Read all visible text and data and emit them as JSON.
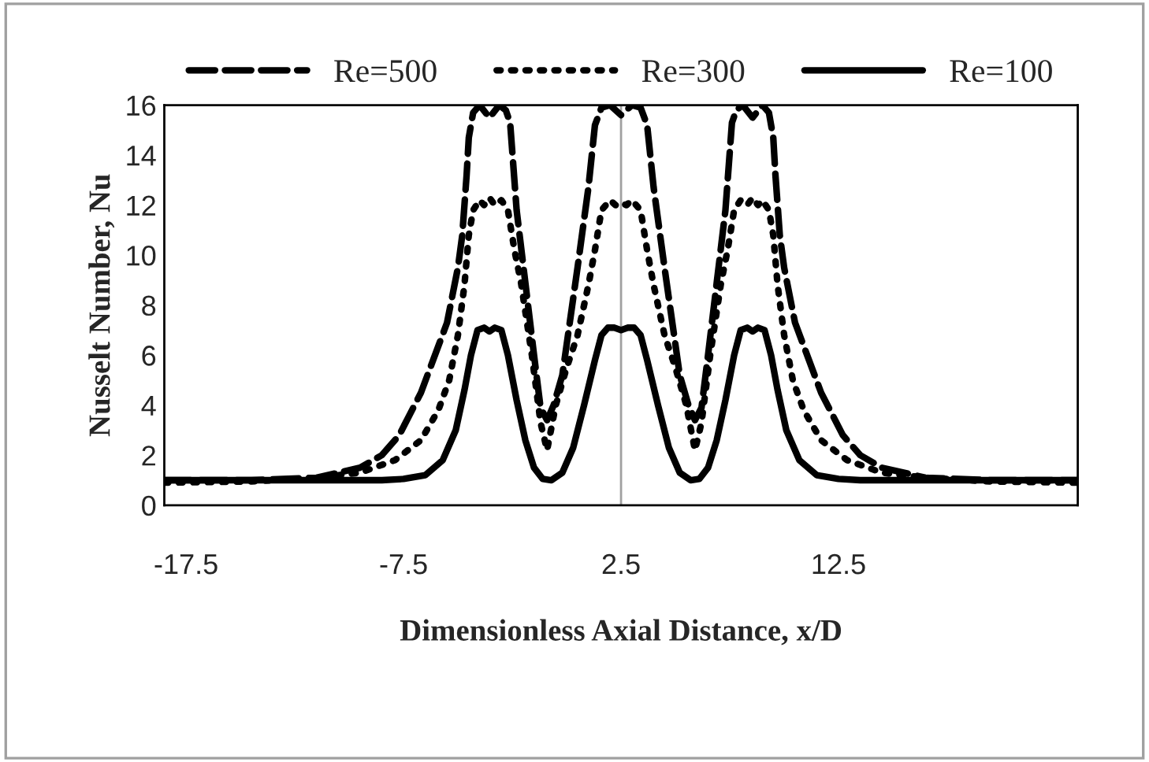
{
  "chart_data": {
    "type": "line",
    "xlabel": "Dimensionless Axial Distance, x/D",
    "ylabel": "Nusselt Number, Nu",
    "xlim": [
      -18.5,
      23.5
    ],
    "xticks": [
      -17.5,
      -7.5,
      2.5,
      12.5
    ],
    "ylim": [
      0,
      16
    ],
    "yticks": [
      0,
      2,
      4,
      6,
      8,
      10,
      12,
      14,
      16
    ],
    "grid": false,
    "legend": "top",
    "marker": "none",
    "ref_lines": [
      {
        "axis": "x",
        "value": 2.5,
        "color": "#a0a0a0"
      }
    ],
    "series": [
      {
        "name": "Re=500",
        "color": "#000000",
        "line_style": "dashed",
        "x": [
          -18.5,
          -14.5,
          -11.5,
          -9.5,
          -8.5,
          -7.7,
          -6.7,
          -5.5,
          -5.0,
          -4.8,
          -4.6,
          -4.5,
          -4.3,
          -4.0,
          -3.55,
          -3.1,
          -2.8,
          -2.6,
          -2.3,
          -1.9,
          -1.5,
          -1.2,
          -0.9,
          -0.6,
          -0.2,
          0.5,
          1.0,
          1.3,
          1.6,
          2.0,
          2.5,
          3.0,
          3.4,
          3.7,
          4.0,
          4.5,
          5.2,
          5.6,
          5.9,
          6.2,
          6.5,
          6.9,
          7.3,
          7.6,
          7.8,
          8.1,
          8.55,
          9.0,
          9.3,
          9.5,
          9.6,
          9.8,
          10.0,
          10.5,
          11.7,
          12.7,
          13.5,
          14.5,
          16.5,
          19.5,
          23.5
        ],
        "values": [
          1.0,
          1.0,
          1.1,
          1.5,
          2.0,
          2.8,
          4.5,
          7.3,
          9.5,
          10.8,
          13.2,
          14.7,
          15.7,
          16.0,
          15.5,
          16.0,
          15.8,
          15.3,
          11.8,
          8.9,
          6.0,
          3.9,
          3.4,
          4.0,
          5.2,
          9.5,
          12.7,
          15.2,
          15.9,
          16.0,
          15.6,
          16.0,
          15.9,
          15.2,
          12.7,
          9.5,
          5.2,
          4.0,
          3.4,
          3.9,
          6.0,
          8.9,
          11.8,
          15.3,
          15.8,
          16.0,
          15.5,
          16.0,
          15.7,
          14.7,
          13.2,
          10.8,
          9.5,
          7.3,
          4.5,
          2.8,
          2.0,
          1.5,
          1.1,
          1.0,
          1.0
        ]
      },
      {
        "name": "Re=300",
        "color": "#000000",
        "line_style": "dotted",
        "x": [
          -18.5,
          -14.5,
          -11.5,
          -9.5,
          -7.9,
          -6.7,
          -5.9,
          -5.4,
          -5.0,
          -4.7,
          -4.5,
          -4.3,
          -4.0,
          -3.8,
          -3.55,
          -3.3,
          -3.0,
          -2.7,
          -2.4,
          -2.1,
          -1.6,
          -1.2,
          -0.9,
          -0.5,
          0.0,
          0.5,
          1.0,
          1.3,
          1.6,
          2.0,
          2.25,
          2.5,
          2.75,
          3.0,
          3.4,
          3.7,
          4.0,
          4.5,
          5.0,
          5.5,
          5.9,
          6.2,
          6.6,
          7.1,
          7.4,
          7.7,
          8.0,
          8.3,
          8.55,
          8.8,
          9.0,
          9.3,
          9.5,
          9.7,
          10.0,
          10.4,
          10.9,
          11.7,
          12.9,
          14.5,
          16.5,
          19.5,
          23.5
        ],
        "values": [
          0.9,
          0.95,
          1.1,
          1.3,
          1.8,
          2.6,
          3.8,
          5.0,
          6.8,
          8.8,
          10.8,
          11.8,
          12.2,
          12.0,
          12.3,
          12.0,
          12.2,
          11.8,
          10.2,
          8.9,
          6.0,
          3.3,
          2.2,
          4.0,
          5.5,
          6.8,
          8.8,
          10.2,
          11.8,
          12.2,
          12.0,
          12.1,
          12.0,
          12.2,
          11.8,
          10.2,
          8.8,
          6.8,
          5.5,
          4.0,
          2.2,
          3.3,
          6.0,
          8.9,
          10.2,
          11.8,
          12.2,
          12.0,
          12.3,
          12.0,
          12.2,
          11.8,
          10.8,
          8.8,
          6.8,
          5.0,
          3.8,
          2.6,
          1.8,
          1.3,
          1.1,
          0.95,
          0.9
        ]
      },
      {
        "name": "Re=100",
        "color": "#000000",
        "line_style": "solid",
        "x": [
          -18.5,
          -11.5,
          -8.5,
          -7.5,
          -6.5,
          -5.7,
          -5.1,
          -4.7,
          -4.4,
          -4.1,
          -3.8,
          -3.55,
          -3.3,
          -3.0,
          -2.7,
          -2.3,
          -1.9,
          -1.5,
          -1.1,
          -0.7,
          -0.2,
          0.3,
          0.8,
          1.3,
          1.6,
          1.9,
          2.2,
          2.5,
          2.8,
          3.1,
          3.4,
          3.7,
          4.2,
          4.7,
          5.2,
          5.7,
          6.1,
          6.5,
          6.9,
          7.3,
          7.7,
          8.0,
          8.3,
          8.55,
          8.8,
          9.1,
          9.4,
          9.7,
          10.1,
          10.7,
          11.5,
          12.5,
          13.5,
          16.5,
          23.5
        ],
        "values": [
          1.0,
          1.0,
          1.0,
          1.05,
          1.2,
          1.8,
          3.0,
          4.6,
          6.0,
          7.0,
          7.1,
          6.95,
          7.1,
          7.0,
          6.0,
          4.2,
          2.6,
          1.5,
          1.05,
          1.0,
          1.3,
          2.3,
          4.0,
          5.8,
          6.8,
          7.1,
          7.1,
          7.0,
          7.1,
          7.1,
          6.8,
          5.8,
          4.0,
          2.3,
          1.3,
          1.0,
          1.05,
          1.5,
          2.6,
          4.2,
          6.0,
          7.0,
          7.1,
          6.95,
          7.1,
          7.0,
          6.0,
          4.6,
          3.0,
          1.8,
          1.2,
          1.05,
          1.0,
          1.0,
          1.0
        ]
      }
    ]
  }
}
